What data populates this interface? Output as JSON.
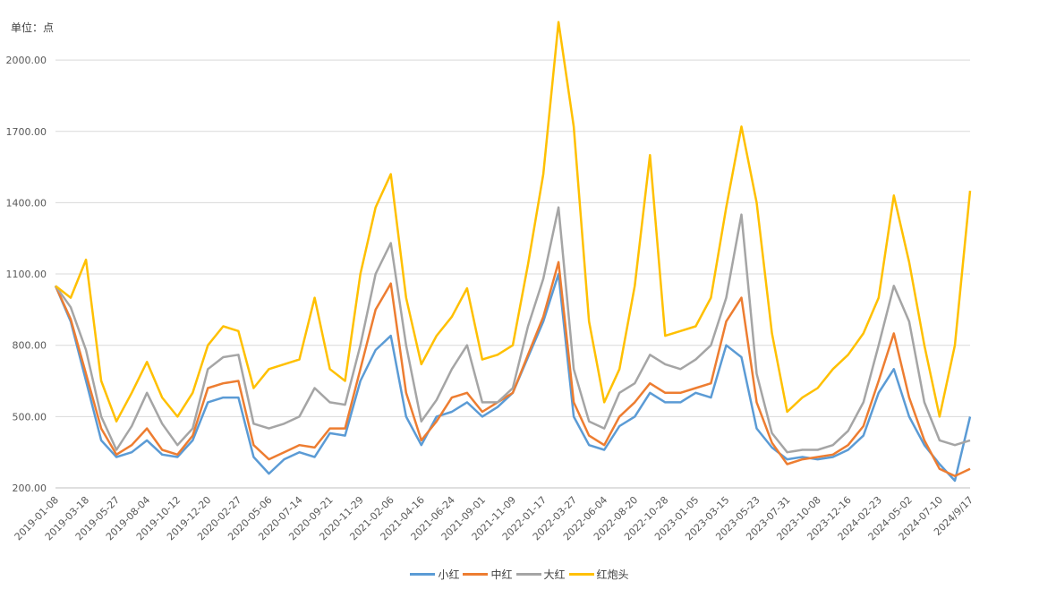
{
  "chart_data": {
    "type": "line",
    "unit_label": "单位：点",
    "ylim": [
      200,
      2200
    ],
    "yticks": [
      200,
      500,
      800,
      1100,
      1400,
      1700,
      2000
    ],
    "ytick_labels": [
      "200.00",
      "500.00",
      "800.00",
      "1100.00",
      "1400.00",
      "1700.00",
      "2000.00"
    ],
    "grid": true,
    "legend_position": "bottom",
    "x_tick_labels": [
      "2019-01-08",
      "2019-03-18",
      "2019-05-27",
      "2019-08-04",
      "2019-10-12",
      "2019-12-20",
      "2020-02-27",
      "2020-05-06",
      "2020-07-14",
      "2020-09-21",
      "2020-11-29",
      "2021-02-06",
      "2021-04-16",
      "2021-06-24",
      "2021-09-01",
      "2021-11-09",
      "2022-01-17",
      "2022-03-27",
      "2022-06-04",
      "2022-08-20",
      "2022-10-28",
      "2023-01-05",
      "2023-03-15",
      "2023-05-23",
      "2023-07-31",
      "2023-10-08",
      "2023-12-16",
      "2024-02-23",
      "2024-05-02",
      "2024-07-10",
      "2024/9/17"
    ],
    "x": [
      0,
      0.5,
      1,
      1.5,
      2,
      2.5,
      3,
      3.5,
      4,
      4.5,
      5,
      5.5,
      6,
      6.5,
      7,
      7.5,
      8,
      8.5,
      9,
      9.5,
      10,
      10.5,
      11,
      11.5,
      12,
      12.5,
      13,
      13.5,
      14,
      14.5,
      15,
      15.5,
      16,
      16.5,
      17,
      17.5,
      18,
      18.5,
      19,
      19.5,
      20,
      20.5,
      21,
      21.5,
      22,
      22.5,
      23,
      23.5,
      24,
      24.5,
      25,
      25.5,
      26,
      26.5,
      27,
      27.5,
      28,
      28.5,
      29,
      29.5,
      30
    ],
    "series": [
      {
        "name": "小红",
        "color": "#5B9BD5",
        "values": [
          1050,
          900,
          650,
          400,
          330,
          350,
          400,
          340,
          330,
          400,
          560,
          580,
          580,
          330,
          260,
          320,
          350,
          330,
          430,
          420,
          650,
          780,
          840,
          500,
          380,
          500,
          520,
          560,
          500,
          540,
          600,
          750,
          900,
          1100,
          500,
          380,
          360,
          460,
          500,
          600,
          560,
          560,
          600,
          580,
          800,
          750,
          450,
          370,
          320,
          330,
          320,
          330,
          360,
          420,
          600,
          700,
          500,
          380,
          300,
          230,
          500
        ]
      },
      {
        "name": "中红",
        "color": "#ED7D31",
        "values": [
          1050,
          910,
          680,
          450,
          340,
          380,
          450,
          360,
          340,
          420,
          620,
          640,
          650,
          380,
          320,
          350,
          380,
          370,
          450,
          450,
          700,
          950,
          1060,
          600,
          400,
          480,
          580,
          600,
          520,
          560,
          600,
          760,
          920,
          1150,
          560,
          420,
          380,
          500,
          560,
          640,
          600,
          600,
          620,
          640,
          900,
          1000,
          560,
          390,
          300,
          320,
          330,
          340,
          380,
          460,
          650,
          850,
          580,
          400,
          280,
          250,
          280
        ]
      },
      {
        "name": "大红",
        "color": "#A5A5A5",
        "values": [
          1050,
          960,
          780,
          500,
          360,
          460,
          600,
          470,
          380,
          450,
          700,
          750,
          760,
          470,
          450,
          470,
          500,
          620,
          560,
          550,
          800,
          1100,
          1230,
          800,
          480,
          570,
          700,
          800,
          560,
          560,
          620,
          880,
          1080,
          1380,
          700,
          480,
          450,
          600,
          640,
          760,
          720,
          700,
          740,
          800,
          1000,
          1350,
          680,
          430,
          350,
          360,
          360,
          380,
          440,
          560,
          800,
          1050,
          900,
          560,
          400,
          380,
          400
        ]
      },
      {
        "name": "红炮头",
        "color": "#FFC000",
        "values": [
          1050,
          1000,
          1160,
          650,
          480,
          600,
          730,
          580,
          500,
          600,
          800,
          880,
          860,
          620,
          700,
          720,
          740,
          1000,
          700,
          650,
          1100,
          1380,
          1520,
          1000,
          720,
          840,
          920,
          1040,
          740,
          760,
          800,
          1140,
          1520,
          2160,
          1720,
          900,
          560,
          700,
          1050,
          1600,
          840,
          860,
          880,
          1000,
          1380,
          1720,
          1400,
          850,
          520,
          580,
          620,
          700,
          760,
          850,
          1000,
          1430,
          1150,
          800,
          500,
          800,
          1450
        ]
      }
    ]
  }
}
